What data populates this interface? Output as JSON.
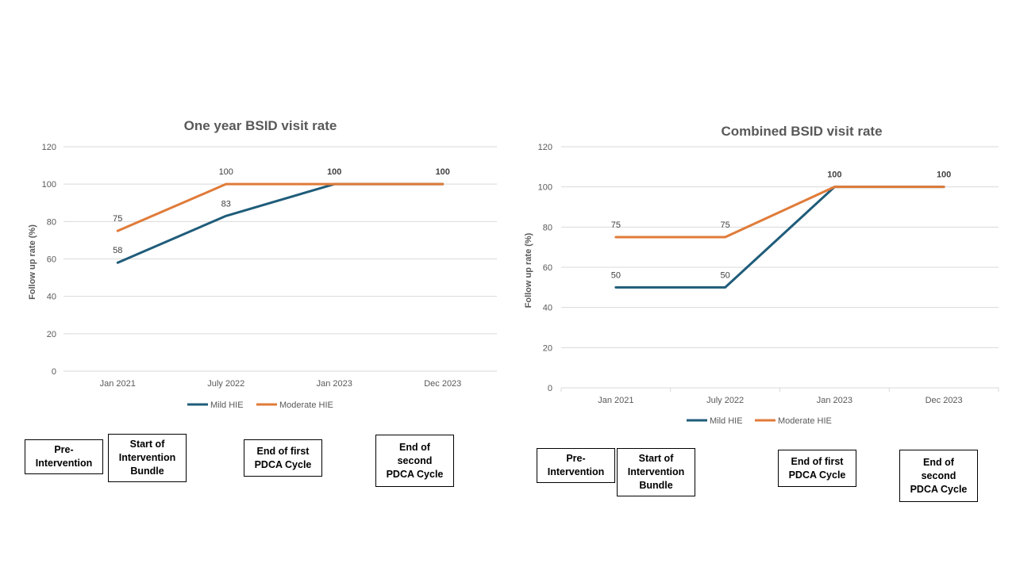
{
  "colors": {
    "mild": "#1f5c7a",
    "moderate": "#e07b39",
    "grid": "#d9d9d9",
    "text": "#595959"
  },
  "legend_position": "bottom",
  "chart_data": [
    {
      "type": "line",
      "title": "One year BSID visit rate",
      "ylabel": "Follow up rate (%)",
      "xlabel": "",
      "categories": [
        "Jan 2021",
        "July 2022",
        "Jan 2023",
        "Dec 2023"
      ],
      "ylim": [
        0,
        120
      ],
      "yticks": [
        "0",
        "20",
        "40",
        "60",
        "80",
        "100",
        "120"
      ],
      "grid": true,
      "legend": "bottom",
      "series": [
        {
          "name": "Mild HIE",
          "values": [
            58,
            83,
            100,
            100
          ],
          "labels": [
            "58",
            "83",
            "",
            ""
          ]
        },
        {
          "name": "Moderate HIE",
          "values": [
            75,
            100,
            100,
            100
          ],
          "labels": [
            "75",
            "100",
            "100",
            "100"
          ]
        }
      ]
    },
    {
      "type": "line",
      "title": "Combined BSID visit rate",
      "ylabel": "Follow up rate (%)",
      "xlabel": "",
      "categories": [
        "Jan 2021",
        "July 2022",
        "Jan 2023",
        "Dec 2023"
      ],
      "ylim": [
        0,
        120
      ],
      "yticks": [
        "0",
        "20",
        "40",
        "60",
        "80",
        "100",
        "120"
      ],
      "grid": true,
      "legend": "bottom",
      "series": [
        {
          "name": "Mild HIE",
          "values": [
            50,
            50,
            100,
            100
          ],
          "labels": [
            "50",
            "50",
            "",
            ""
          ]
        },
        {
          "name": "Moderate HIE",
          "values": [
            75,
            75,
            100,
            100
          ],
          "labels": [
            "75",
            "75",
            "100",
            "100"
          ]
        }
      ]
    }
  ],
  "stage_boxes": [
    [
      "Pre-\nIntervention",
      "Start of\nIntervention\nBundle",
      "End of first\nPDCA Cycle",
      "End of\nsecond\nPDCA Cycle"
    ],
    [
      "Pre-\nIntervention",
      "Start of\nIntervention\nBundle",
      "End of first\nPDCA Cycle",
      "End of\nsecond\nPDCA Cycle"
    ]
  ]
}
